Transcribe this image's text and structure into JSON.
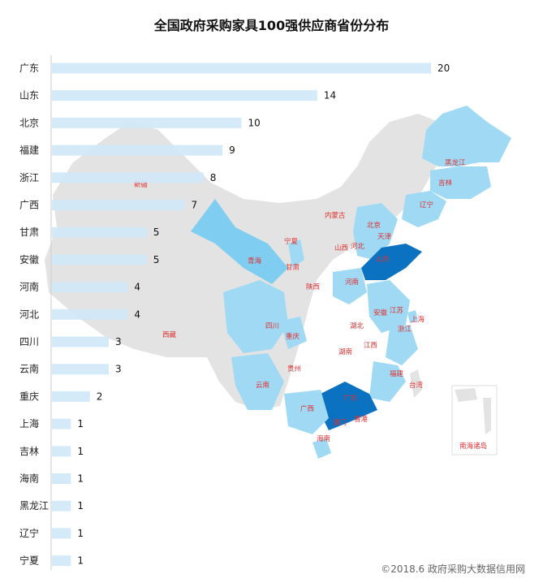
{
  "title": "全国政府采购家具100强供应商省份分布",
  "credit": "©2018.6 政府采购大数据信用网",
  "colors": {
    "bar": "#cfe8f8",
    "map_base": "#e3e3e3",
    "map_light": "#9fd9f4",
    "map_mid": "#7fcdf0",
    "map_dark": "#0a72c0",
    "label": "#e03030"
  },
  "chart_data": {
    "type": "bar",
    "orientation": "horizontal",
    "categories": [
      "广东",
      "山东",
      "北京",
      "福建",
      "浙江",
      "广西",
      "甘肃",
      "安徽",
      "河南",
      "河北",
      "四川",
      "云南",
      "重庆",
      "上海",
      "吉林",
      "海南",
      "黑龙江",
      "辽宁",
      "宁夏"
    ],
    "values": [
      20,
      14,
      10,
      9,
      8,
      7,
      5,
      5,
      4,
      4,
      3,
      3,
      2,
      1,
      1,
      1,
      1,
      1,
      1
    ],
    "xlim": [
      0,
      20
    ],
    "grid": false,
    "legend": "none"
  },
  "map_labels": [
    "黑龙江",
    "吉林",
    "辽宁",
    "内蒙古",
    "北京",
    "天津",
    "河北",
    "山西",
    "山东",
    "宁夏",
    "甘肃",
    "青海",
    "新疆",
    "西藏",
    "陕西",
    "河南",
    "江苏",
    "安徽",
    "上海",
    "四川",
    "重庆",
    "湖北",
    "浙江",
    "湖南",
    "江西",
    "贵州",
    "福建",
    "台湾",
    "云南",
    "广西",
    "广东",
    "澳门",
    "香港",
    "海南",
    "南海诸岛"
  ]
}
